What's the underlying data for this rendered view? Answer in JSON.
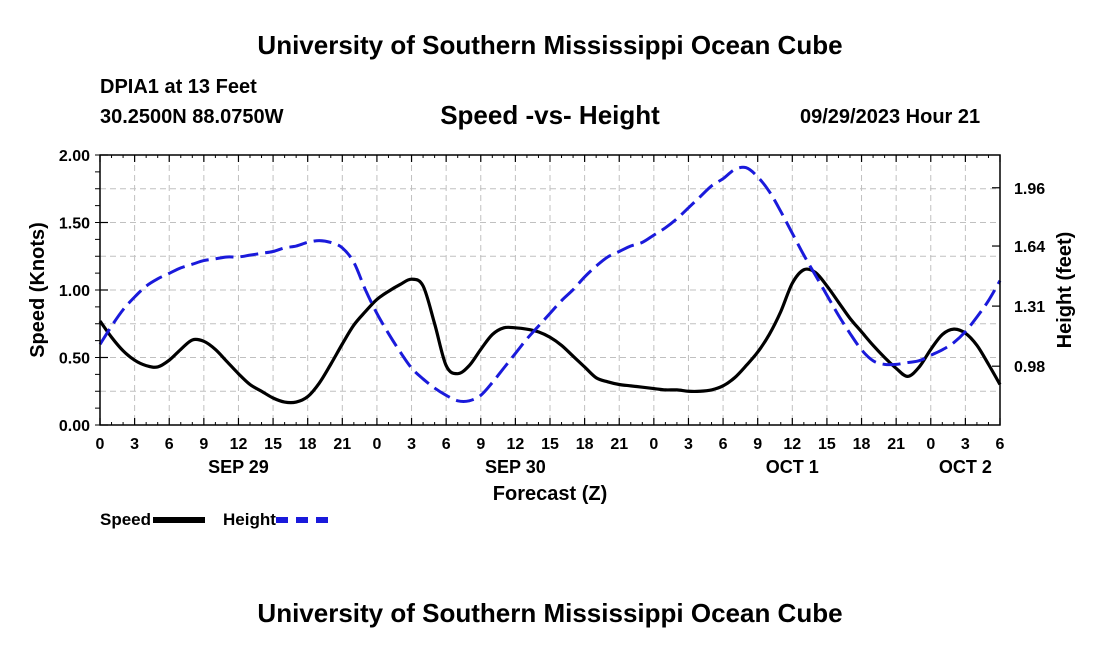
{
  "title": "University of Southern Mississippi Ocean Cube",
  "footer_title": "University of Southern Mississippi Ocean Cube",
  "station": "DPIA1 at 13 Feet",
  "coords": "30.2500N  88.0750W",
  "datetime": "09/29/2023 Hour 21",
  "colors": {
    "speed": "#000000",
    "height": "#1a1adb",
    "grid": "#c0c0c0"
  },
  "chart_data": {
    "type": "line",
    "title": "Speed -vs- Height",
    "xlabel": "Forecast (Z)",
    "ylabel": "Speed (Knots)",
    "y2label": "Height (feet)",
    "ylim": [
      0,
      2
    ],
    "y2lim": [
      0.657,
      2.14
    ],
    "xlim": [
      0,
      78
    ],
    "yticks": [
      "0.00",
      "0.50",
      "1.00",
      "1.50",
      "2.00"
    ],
    "y2ticks": [
      "0.98",
      "1.31",
      "1.64",
      "1.96"
    ],
    "xticks": [
      "0",
      "3",
      "6",
      "9",
      "12",
      "15",
      "18",
      "21",
      "0",
      "3",
      "6",
      "9",
      "12",
      "15",
      "18",
      "21",
      "0",
      "3",
      "6",
      "9",
      "12",
      "15",
      "18",
      "21",
      "0",
      "3",
      "6"
    ],
    "day_labels": [
      {
        "label": "SEP 29",
        "hour": 12
      },
      {
        "label": "SEP 30",
        "hour": 36
      },
      {
        "label": "OCT 1",
        "hour": 60
      },
      {
        "label": "OCT 2",
        "hour": 75
      }
    ],
    "x": [
      0,
      1,
      2,
      3,
      4,
      5,
      6,
      7,
      8,
      9,
      10,
      11,
      12,
      13,
      14,
      15,
      16,
      17,
      18,
      19,
      20,
      21,
      22,
      23,
      24,
      25,
      26,
      27,
      28,
      29,
      30,
      31,
      32,
      33,
      34,
      35,
      36,
      37,
      38,
      39,
      40,
      41,
      42,
      43,
      44,
      45,
      46,
      47,
      48,
      49,
      50,
      51,
      52,
      53,
      54,
      55,
      56,
      57,
      58,
      59,
      60,
      61,
      62,
      63,
      64,
      65,
      66,
      67,
      68,
      69,
      70,
      71,
      72,
      73,
      74,
      75,
      76,
      77,
      78
    ],
    "series": [
      {
        "name": "Speed",
        "axis": "left",
        "values": [
          0.77,
          0.65,
          0.55,
          0.48,
          0.44,
          0.43,
          0.48,
          0.56,
          0.63,
          0.62,
          0.56,
          0.47,
          0.38,
          0.3,
          0.25,
          0.2,
          0.17,
          0.17,
          0.21,
          0.31,
          0.45,
          0.6,
          0.74,
          0.84,
          0.93,
          0.99,
          1.04,
          1.08,
          1.03,
          0.75,
          0.44,
          0.38,
          0.44,
          0.56,
          0.67,
          0.72,
          0.72,
          0.71,
          0.69,
          0.65,
          0.59,
          0.51,
          0.43,
          0.35,
          0.32,
          0.3,
          0.29,
          0.28,
          0.27,
          0.26,
          0.26,
          0.25,
          0.25,
          0.26,
          0.29,
          0.35,
          0.44,
          0.54,
          0.67,
          0.84,
          1.05,
          1.15,
          1.13,
          1.03,
          0.91,
          0.79,
          0.69,
          0.59,
          0.5,
          0.42,
          0.36,
          0.43,
          0.56,
          0.67,
          0.71,
          0.68,
          0.59,
          0.45,
          0.3
        ]
      },
      {
        "name": "Height",
        "axis": "right",
        "values": [
          1.1,
          1.2,
          1.29,
          1.36,
          1.42,
          1.46,
          1.49,
          1.52,
          1.54,
          1.56,
          1.57,
          1.58,
          1.58,
          1.59,
          1.6,
          1.61,
          1.63,
          1.64,
          1.66,
          1.67,
          1.66,
          1.63,
          1.55,
          1.4,
          1.27,
          1.16,
          1.06,
          0.97,
          0.91,
          0.86,
          0.82,
          0.79,
          0.79,
          0.82,
          0.89,
          0.97,
          1.05,
          1.13,
          1.2,
          1.27,
          1.34,
          1.4,
          1.47,
          1.53,
          1.58,
          1.61,
          1.64,
          1.66,
          1.7,
          1.74,
          1.79,
          1.85,
          1.91,
          1.97,
          2.01,
          2.06,
          2.07,
          2.02,
          1.94,
          1.83,
          1.71,
          1.59,
          1.48,
          1.37,
          1.26,
          1.16,
          1.07,
          1.01,
          0.99,
          0.99,
          1.0,
          1.01,
          1.04,
          1.07,
          1.11,
          1.17,
          1.25,
          1.34,
          1.45
        ]
      }
    ]
  },
  "legend": {
    "speed_label": "Speed",
    "height_label": "Height"
  }
}
